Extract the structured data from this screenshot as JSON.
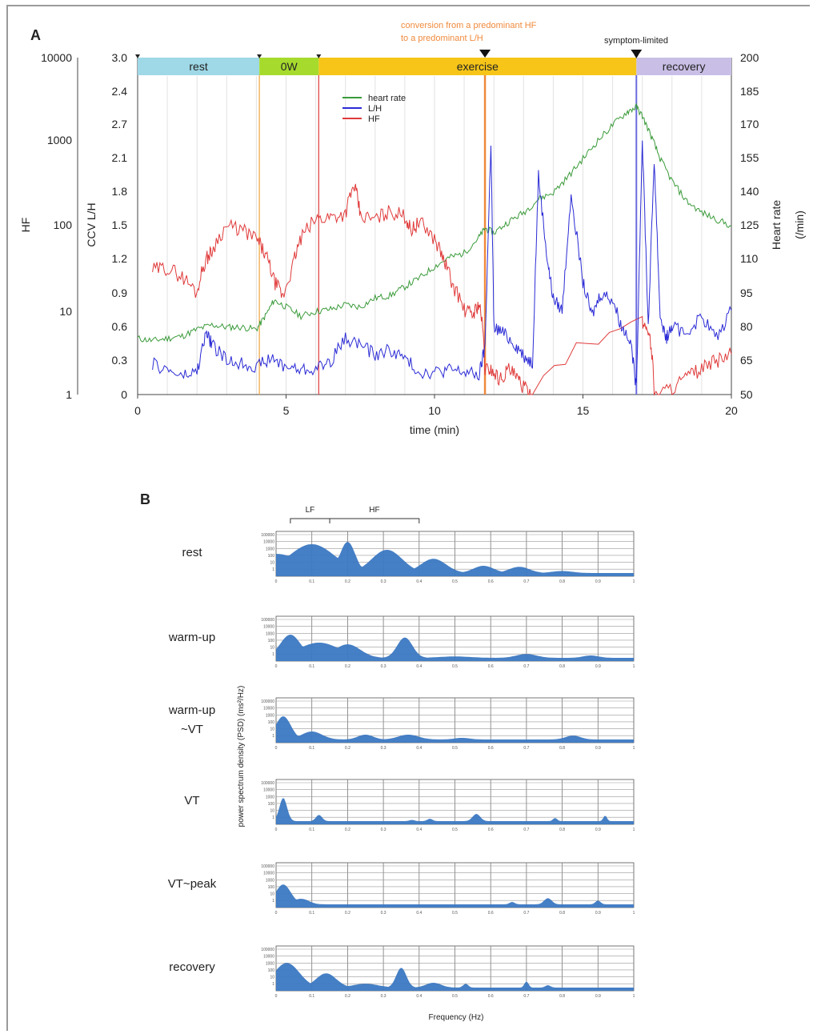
{
  "panel_a_label": "A",
  "panel_b_label": "B",
  "colors": {
    "heart_rate": "#3a9a3a",
    "lh": "#2b2bd6",
    "hf": "#e03a3a",
    "phase_rest": "#9fd8e6",
    "phase_0w": "#a6db2e",
    "phase_exercise": "#f6c518",
    "phase_recovery": "#c9bfe6",
    "psd_fill": "#3b78c2",
    "annotation_orange": "#f08a3c"
  },
  "chart_data": [
    {
      "type": "line",
      "phases": [
        {
          "label": "rest",
          "start": 0,
          "end": 4.1
        },
        {
          "label": "0W",
          "start": 4.1,
          "end": 6.1
        },
        {
          "label": "exercise",
          "start": 6.1,
          "end": 16.8
        },
        {
          "label": "recovery",
          "start": 16.8,
          "end": 20
        }
      ],
      "annotations": {
        "conversion": [
          "conversion from a predominant HF",
          "to a predominant L/H"
        ],
        "conversion_time": 11.7,
        "symptom_limited": "symptom-limited",
        "symptom_time": 16.8
      },
      "xlabel": "time (min)",
      "xlim": [
        0,
        20
      ],
      "xticks": [
        "0",
        "5",
        "10",
        "15",
        "20"
      ],
      "left_axis_hf": {
        "label": "HF",
        "scale": "log",
        "range": [
          1,
          10000
        ],
        "ticks": [
          "10000",
          "1000",
          "100",
          "10",
          "1"
        ]
      },
      "left_axis_lh": {
        "label": "CCV L/H",
        "range": [
          0,
          3.0
        ],
        "ticks": [
          "3.0",
          "2.4",
          "2.7",
          "2.1",
          "1.8",
          "1.5",
          "1.2",
          "0.9",
          "0.6",
          "0.3",
          "0"
        ]
      },
      "right_axis": {
        "label": [
          "Heart rate",
          "(/min)"
        ],
        "range": [
          50,
          200
        ],
        "ticks": [
          "200",
          "185",
          "170",
          "155",
          "140",
          "125",
          "110",
          "95",
          "80",
          "65",
          "50"
        ]
      },
      "legend": [
        "heart rate",
        "L/H",
        "HF"
      ],
      "series": [
        {
          "name": "heart rate",
          "axis": "right",
          "x": [
            0,
            0.5,
            1,
            1.5,
            2,
            2.5,
            3,
            3.5,
            4,
            4.3,
            4.6,
            5,
            5.5,
            6,
            6.5,
            7,
            7.5,
            8,
            8.5,
            9,
            9.5,
            10,
            10.5,
            11,
            11.5,
            11.7,
            12,
            12.5,
            13,
            13.5,
            14,
            14.5,
            15,
            15.5,
            16,
            16.5,
            16.8,
            17,
            17.3,
            17.6,
            18,
            18.5,
            19,
            19.5,
            20
          ],
          "y": [
            75,
            74,
            75,
            76,
            79,
            81,
            80,
            80,
            79,
            85,
            92,
            89,
            85,
            87,
            88,
            90,
            89,
            93,
            94,
            98,
            102,
            107,
            111,
            113,
            120,
            124,
            122,
            127,
            131,
            137,
            140,
            147,
            155,
            163,
            170,
            176,
            178,
            174,
            165,
            155,
            145,
            136,
            131,
            128,
            125
          ]
        },
        {
          "name": "L/H",
          "axis": "lh",
          "x": [
            0.5,
            1,
            1.5,
            2,
            2.3,
            2.5,
            3,
            3.5,
            4,
            4.5,
            5,
            5.5,
            6,
            6.5,
            7,
            7.5,
            8,
            8.5,
            9,
            9.5,
            10,
            10.5,
            11,
            11.5,
            11.7,
            11.9,
            12,
            12.3,
            12.7,
            13,
            13.3,
            13.5,
            13.8,
            14,
            14.3,
            14.6,
            15,
            15.3,
            15.6,
            16,
            16.3,
            16.6,
            16.8,
            17,
            17.2,
            17.4,
            17.6,
            17.8,
            18,
            18.5,
            19,
            19.5,
            20
          ],
          "y": [
            0.27,
            0.22,
            0.16,
            0.2,
            0.55,
            0.45,
            0.3,
            0.28,
            0.25,
            0.32,
            0.25,
            0.22,
            0.23,
            0.3,
            0.5,
            0.45,
            0.35,
            0.4,
            0.32,
            0.2,
            0.2,
            0.22,
            0.2,
            0.17,
            0.42,
            2.25,
            0.6,
            0.55,
            0.45,
            0.35,
            0.28,
            1.95,
            1.2,
            0.85,
            0.75,
            1.8,
            1.0,
            0.7,
            0.9,
            0.85,
            0.6,
            0.5,
            0.05,
            2.3,
            0.6,
            2.1,
            0.7,
            0.5,
            0.6,
            0.55,
            0.7,
            0.5,
            0.75
          ]
        },
        {
          "name": "HF",
          "axis": "hf",
          "x": [
            0.5,
            1,
            1.5,
            2,
            2.3,
            2.5,
            3,
            3.5,
            4,
            4.3,
            4.6,
            4.9,
            5.2,
            5.5,
            6,
            6.5,
            7,
            7.3,
            7.5,
            8,
            8.5,
            9,
            9.2,
            9.5,
            10,
            10.3,
            10.6,
            11,
            11.3,
            11.5,
            11.7,
            11.9,
            12.2,
            12.5,
            12.8,
            13,
            13.3,
            17,
            17.2,
            17.4,
            18,
            18.5,
            19,
            19.5,
            20
          ],
          "y": [
            30,
            32,
            25,
            16,
            40,
            50,
            100,
            90,
            70,
            45,
            22,
            14,
            30,
            70,
            120,
            130,
            140,
            300,
            130,
            120,
            150,
            130,
            90,
            110,
            70,
            40,
            20,
            10,
            9,
            12,
            2,
            2,
            1.5,
            2,
            1.5,
            1.2,
            1,
            7,
            6,
            1,
            1.2,
            1.6,
            2,
            2.5,
            3
          ]
        }
      ]
    },
    {
      "type": "area",
      "ylabel": "power spectrum density (PSD) (ms²/Hz)",
      "xlabel": "Frequency (Hz)",
      "band_labels": [
        "LF",
        "HF"
      ],
      "xlim": [
        0,
        1
      ],
      "xticks": [
        "0",
        "0.1",
        "0.2",
        "0.3",
        "0.4",
        "0.5",
        "0.6",
        "0.7",
        "0.8",
        "0.9",
        "1"
      ],
      "ylim_log": [
        1,
        100000
      ],
      "yticks": [
        "100000",
        "10000",
        "1000",
        "100",
        "10",
        "1"
      ],
      "series": [
        {
          "name": "rest",
          "peaks": [
            [
              0,
              250,
              0.1
            ],
            [
              0.1,
              4000,
              0.09
            ],
            [
              0.2,
              8000,
              0.03
            ],
            [
              0.31,
              800,
              0.06
            ],
            [
              0.44,
              60,
              0.05
            ],
            [
              0.58,
              8,
              0.04
            ],
            [
              0.68,
              6,
              0.04
            ],
            [
              0.8,
              1.8,
              0.04
            ]
          ]
        },
        {
          "name": "warm-up",
          "peaks": [
            [
              0.04,
              800,
              0.04
            ],
            [
              0.12,
              80,
              0.08
            ],
            [
              0.2,
              50,
              0.05
            ],
            [
              0.36,
              350,
              0.03
            ],
            [
              0.5,
              1.5,
              0.06
            ],
            [
              0.7,
              3,
              0.04
            ],
            [
              0.88,
              2,
              0.03
            ]
          ]
        },
        {
          "name": "warm-up ~VT",
          "peaks": [
            [
              0.02,
              800,
              0.03
            ],
            [
              0.1,
              10,
              0.04
            ],
            [
              0.25,
              4,
              0.03
            ],
            [
              0.37,
              4,
              0.04
            ],
            [
              0.52,
              1.6,
              0.03
            ],
            [
              0.83,
              3,
              0.03
            ]
          ]
        },
        {
          "name": "VT",
          "peaks": [
            [
              0.02,
              800,
              0.015
            ],
            [
              0.12,
              6,
              0.012
            ],
            [
              0.38,
              1.4,
              0.01
            ],
            [
              0.43,
              2,
              0.01
            ],
            [
              0.56,
              8,
              0.015
            ],
            [
              0.78,
              2.5,
              0.008
            ],
            [
              0.92,
              5,
              0.007
            ]
          ]
        },
        {
          "name": "VT~peak",
          "peaks": [
            [
              0.02,
              300,
              0.03
            ],
            [
              0.07,
              5,
              0.03
            ],
            [
              0.66,
              2,
              0.01
            ],
            [
              0.76,
              6,
              0.015
            ],
            [
              0.9,
              3,
              0.01
            ]
          ]
        },
        {
          "name": "recovery",
          "peaks": [
            [
              0.03,
              1200,
              0.05
            ],
            [
              0.14,
              60,
              0.04
            ],
            [
              0.25,
              3,
              0.05
            ],
            [
              0.35,
              300,
              0.02
            ],
            [
              0.44,
              4,
              0.03
            ],
            [
              0.53,
              3,
              0.01
            ],
            [
              0.7,
              6,
              0.008
            ],
            [
              0.76,
              2,
              0.01
            ]
          ]
        }
      ],
      "row_labels": [
        [
          "rest"
        ],
        [
          "warm-up"
        ],
        [
          "warm-up",
          "~VT"
        ],
        [
          "VT"
        ],
        [
          "VT~peak"
        ],
        [
          "recovery"
        ]
      ]
    }
  ]
}
